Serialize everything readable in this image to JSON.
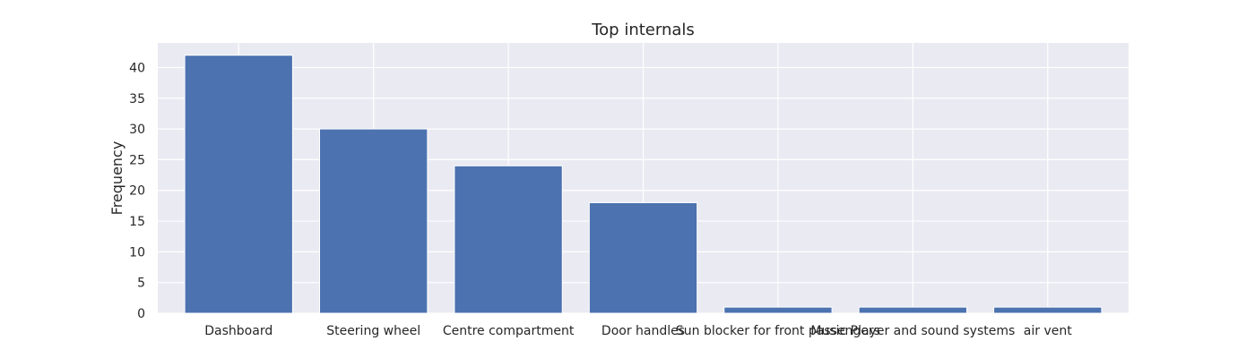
{
  "chart_data": {
    "type": "bar",
    "title": "Top internals",
    "xlabel": "",
    "ylabel": "Frequency",
    "categories": [
      "Dashboard",
      "Steering wheel",
      "Centre compartment",
      "Door handles",
      "Sun blocker for front passengers",
      "Music Player and sound systems",
      "air vent"
    ],
    "values": [
      42,
      30,
      24,
      18,
      1,
      1,
      1
    ],
    "ylim": [
      0,
      44
    ],
    "yticks": [
      0,
      5,
      10,
      15,
      20,
      25,
      30,
      35,
      40
    ],
    "grid": true,
    "legend": "none",
    "colors": {
      "bar": "#4c72b0",
      "plot_background": "#eaeaf2",
      "grid": "#ffffff",
      "text": "#262626"
    }
  }
}
